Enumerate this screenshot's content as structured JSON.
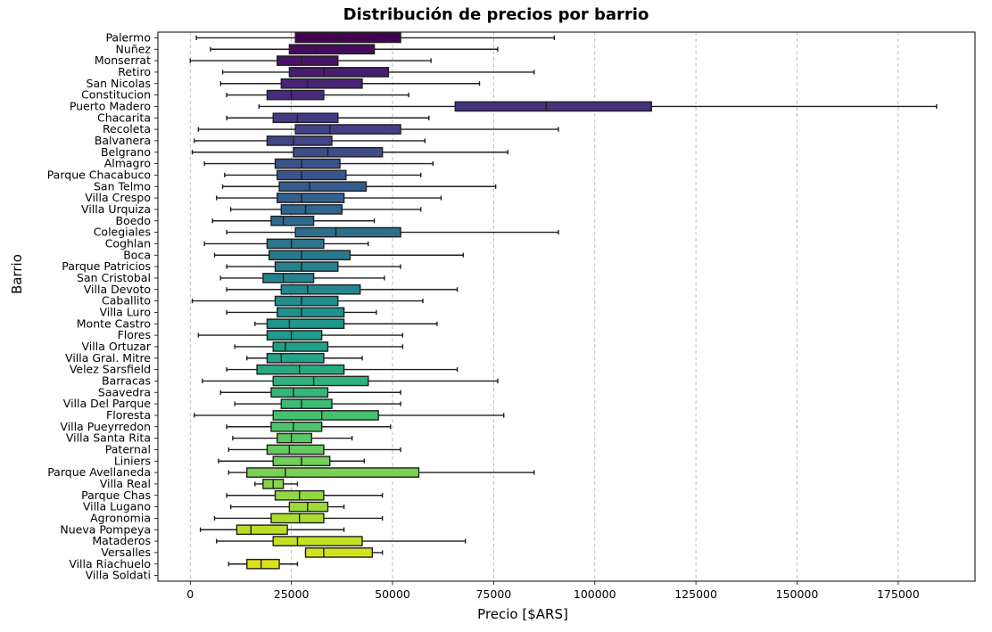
{
  "chart_data": {
    "type": "boxplot",
    "orientation": "horizontal",
    "title": "Distribución de precios por barrio",
    "xlabel": "Precio [$ARS]",
    "ylabel": "Barrio",
    "xlim": [
      -8000,
      194000
    ],
    "xticks": [
      0,
      25000,
      50000,
      75000,
      100000,
      125000,
      150000,
      175000
    ],
    "grid": "x-dashed",
    "palette": "viridis",
    "categories": [
      {
        "name": "Palermo",
        "whislo": 1500,
        "q1": 26000,
        "med": 36000,
        "q3": 52000,
        "whishi": 90000,
        "color": "#440154"
      },
      {
        "name": "Nuñez",
        "whislo": 5000,
        "q1": 24500,
        "med": 31000,
        "q3": 45500,
        "whishi": 76000,
        "color": "#460b5e"
      },
      {
        "name": "Monserrat",
        "whislo": 0,
        "q1": 21500,
        "med": 27500,
        "q3": 36500,
        "whishi": 59500,
        "color": "#471466"
      },
      {
        "name": "Retiro",
        "whislo": 8000,
        "q1": 24500,
        "med": 33000,
        "q3": 49000,
        "whishi": 85000,
        "color": "#481d6f"
      },
      {
        "name": "San Nicolas",
        "whislo": 7500,
        "q1": 22500,
        "med": 29000,
        "q3": 42500,
        "whishi": 71500,
        "color": "#482475"
      },
      {
        "name": "Constitucion",
        "whislo": 9000,
        "q1": 19000,
        "med": 25000,
        "q3": 33000,
        "whishi": 54000,
        "color": "#472c7a"
      },
      {
        "name": "Puerto Madero",
        "whislo": 17000,
        "q1": 65500,
        "med": 88000,
        "q3": 114000,
        "whishi": 184500,
        "color": "#46337f"
      },
      {
        "name": "Chacarita",
        "whislo": 9000,
        "q1": 20500,
        "med": 26500,
        "q3": 36500,
        "whishi": 59000,
        "color": "#443a83"
      },
      {
        "name": "Recoleta",
        "whislo": 2000,
        "q1": 26000,
        "med": 34500,
        "q3": 52000,
        "whishi": 91000,
        "color": "#424186"
      },
      {
        "name": "Balvanera",
        "whislo": 1000,
        "q1": 19000,
        "med": 25500,
        "q3": 35000,
        "whishi": 58000,
        "color": "#404688"
      },
      {
        "name": "Belgrano",
        "whislo": 500,
        "q1": 25500,
        "med": 34000,
        "q3": 47500,
        "whishi": 78500,
        "color": "#3e4c8a"
      },
      {
        "name": "Almagro",
        "whislo": 3500,
        "q1": 21000,
        "med": 27500,
        "q3": 37000,
        "whishi": 60000,
        "color": "#3b528b"
      },
      {
        "name": "Parque Chacabuco",
        "whislo": 8500,
        "q1": 21500,
        "med": 27500,
        "q3": 38500,
        "whishi": 57000,
        "color": "#39568c"
      },
      {
        "name": "San Telmo",
        "whislo": 8000,
        "q1": 22000,
        "med": 29500,
        "q3": 43500,
        "whishi": 75500,
        "color": "#365c8d"
      },
      {
        "name": "Villa Crespo",
        "whislo": 6500,
        "q1": 21500,
        "med": 27500,
        "q3": 38000,
        "whishi": 62000,
        "color": "#34618d"
      },
      {
        "name": "Villa Urquiza",
        "whislo": 10000,
        "q1": 22500,
        "med": 28500,
        "q3": 37500,
        "whishi": 57000,
        "color": "#31668e"
      },
      {
        "name": "Boedo",
        "whislo": 5500,
        "q1": 20000,
        "med": 23000,
        "q3": 30500,
        "whishi": 45500,
        "color": "#2f6b8e"
      },
      {
        "name": "Colegiales",
        "whislo": 9000,
        "q1": 26000,
        "med": 36000,
        "q3": 52000,
        "whishi": 91000,
        "color": "#2d708e"
      },
      {
        "name": "Coghlan",
        "whislo": 3500,
        "q1": 19000,
        "med": 25000,
        "q3": 33000,
        "whishi": 44000,
        "color": "#2b758e"
      },
      {
        "name": "Boca",
        "whislo": 6000,
        "q1": 19500,
        "med": 27500,
        "q3": 39500,
        "whishi": 67500,
        "color": "#29798e"
      },
      {
        "name": "Parque Patricios",
        "whislo": 9000,
        "q1": 21000,
        "med": 27500,
        "q3": 36500,
        "whishi": 52000,
        "color": "#277e8e"
      },
      {
        "name": "San Cristobal",
        "whislo": 7500,
        "q1": 18000,
        "med": 23000,
        "q3": 30500,
        "whishi": 48000,
        "color": "#25838e"
      },
      {
        "name": "Villa Devoto",
        "whislo": 9000,
        "q1": 22500,
        "med": 29000,
        "q3": 42000,
        "whishi": 66000,
        "color": "#23888e"
      },
      {
        "name": "Caballito",
        "whislo": 500,
        "q1": 21000,
        "med": 27500,
        "q3": 36500,
        "whishi": 57500,
        "color": "#218d8d"
      },
      {
        "name": "Villa Luro",
        "whislo": 9000,
        "q1": 21500,
        "med": 27500,
        "q3": 38000,
        "whishi": 46000,
        "color": "#1f918c"
      },
      {
        "name": "Monte Castro",
        "whislo": 16000,
        "q1": 19000,
        "med": 24500,
        "q3": 38000,
        "whishi": 61000,
        "color": "#1f968b"
      },
      {
        "name": "Flores",
        "whislo": 2000,
        "q1": 19000,
        "med": 25000,
        "q3": 32500,
        "whishi": 52500,
        "color": "#1f9b8a"
      },
      {
        "name": "Villa Ortuzar",
        "whislo": 11000,
        "q1": 20500,
        "med": 23500,
        "q3": 34000,
        "whishi": 52500,
        "color": "#21a087"
      },
      {
        "name": "Villa Gral. Mitre",
        "whislo": 14000,
        "q1": 19000,
        "med": 22500,
        "q3": 33000,
        "whishi": 42500,
        "color": "#24a486"
      },
      {
        "name": "Velez Sarsfield",
        "whislo": 9000,
        "q1": 16500,
        "med": 27000,
        "q3": 38000,
        "whishi": 66000,
        "color": "#28a982"
      },
      {
        "name": "Barracas",
        "whislo": 3000,
        "q1": 20500,
        "med": 30500,
        "q3": 44000,
        "whishi": 76000,
        "color": "#2fb17c"
      },
      {
        "name": "Saavedra",
        "whislo": 7500,
        "q1": 20000,
        "med": 25500,
        "q3": 34000,
        "whishi": 52000,
        "color": "#35b779"
      },
      {
        "name": "Villa Del Parque",
        "whislo": 11000,
        "q1": 22500,
        "med": 27500,
        "q3": 35000,
        "whishi": 52000,
        "color": "#3dbc74"
      },
      {
        "name": "Floresta",
        "whislo": 1000,
        "q1": 20500,
        "med": 32500,
        "q3": 46500,
        "whishi": 77500,
        "color": "#45c06f"
      },
      {
        "name": "Villa Pueyrredon",
        "whislo": 9000,
        "q1": 20000,
        "med": 25500,
        "q3": 32500,
        "whishi": 49500,
        "color": "#4fc46a"
      },
      {
        "name": "Villa Santa Rita",
        "whislo": 10500,
        "q1": 21500,
        "med": 25000,
        "q3": 30000,
        "whishi": 40000,
        "color": "#5ac864"
      },
      {
        "name": "Paternal",
        "whislo": 9500,
        "q1": 19000,
        "med": 24500,
        "q3": 33000,
        "whishi": 52000,
        "color": "#65cb5e"
      },
      {
        "name": "Liniers",
        "whislo": 7000,
        "q1": 20500,
        "med": 27500,
        "q3": 34500,
        "whishi": 43000,
        "color": "#70cf57"
      },
      {
        "name": "Parque Avellaneda",
        "whislo": 9500,
        "q1": 14000,
        "med": 23500,
        "q3": 56500,
        "whishi": 85000,
        "color": "#7ad151"
      },
      {
        "name": "Villa Real",
        "whislo": 16000,
        "q1": 18000,
        "med": 20500,
        "q3": 23000,
        "whishi": 26500,
        "color": "#86d549"
      },
      {
        "name": "Parque Chas",
        "whislo": 9000,
        "q1": 21000,
        "med": 27000,
        "q3": 33000,
        "whishi": 47500,
        "color": "#93d741"
      },
      {
        "name": "Villa Lugano",
        "whislo": 10000,
        "q1": 24500,
        "med": 29000,
        "q3": 34000,
        "whishi": 38000,
        "color": "#9fda3a"
      },
      {
        "name": "Agronomia",
        "whislo": 6000,
        "q1": 20000,
        "med": 27000,
        "q3": 33000,
        "whishi": 47500,
        "color": "#acdc30"
      },
      {
        "name": "Nueva Pompeya",
        "whislo": 2500,
        "q1": 11500,
        "med": 15000,
        "q3": 24000,
        "whishi": 38000,
        "color": "#b8de29"
      },
      {
        "name": "Mataderos",
        "whislo": 6500,
        "q1": 20500,
        "med": 26500,
        "q3": 42500,
        "whishi": 68000,
        "color": "#c5e021"
      },
      {
        "name": "Versalles",
        "whislo": 28500,
        "q1": 28500,
        "med": 33000,
        "q3": 45000,
        "whishi": 47500,
        "color": "#d2e21b"
      },
      {
        "name": "Villa Riachuelo",
        "whislo": 9500,
        "q1": 14000,
        "med": 17500,
        "q3": 22000,
        "whishi": 26500,
        "color": "#dde318"
      },
      {
        "name": "Villa Soldati",
        "whislo": null,
        "q1": null,
        "med": null,
        "q3": null,
        "whishi": null,
        "color": "#fde725"
      }
    ]
  }
}
